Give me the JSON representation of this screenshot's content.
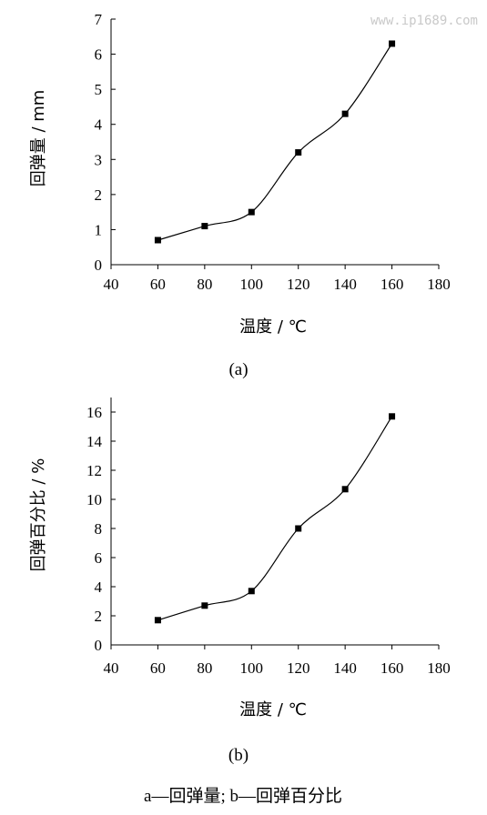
{
  "watermark": "www.ip1689.com",
  "caption": "a—回弹量; b—回弹百分比",
  "chart_data": [
    {
      "type": "line",
      "panel_label": "(a)",
      "xlabel": "温度 / ℃",
      "ylabel": "回弹量 / mm",
      "xlim": [
        40,
        180
      ],
      "ylim": [
        0,
        7
      ],
      "xticks": [
        40,
        60,
        80,
        100,
        120,
        140,
        160,
        180
      ],
      "yticks": [
        0,
        1,
        2,
        3,
        4,
        5,
        6,
        7
      ],
      "x": [
        60,
        80,
        100,
        120,
        140,
        160
      ],
      "y": [
        0.7,
        1.1,
        1.5,
        3.2,
        4.3,
        6.3
      ],
      "marker": "square",
      "smooth": true,
      "grid": false
    },
    {
      "type": "line",
      "panel_label": "(b)",
      "xlabel": "温度 / ℃",
      "ylabel": "回弹百分比 / %",
      "xlim": [
        40,
        180
      ],
      "ylim": [
        0,
        17
      ],
      "xticks": [
        40,
        60,
        80,
        100,
        120,
        140,
        160,
        180
      ],
      "yticks": [
        0,
        2,
        4,
        6,
        8,
        10,
        12,
        14,
        16
      ],
      "x": [
        60,
        80,
        100,
        120,
        140,
        160
      ],
      "y": [
        1.7,
        2.7,
        3.7,
        8.0,
        10.7,
        15.7
      ],
      "marker": "square",
      "smooth": true,
      "grid": false
    }
  ]
}
